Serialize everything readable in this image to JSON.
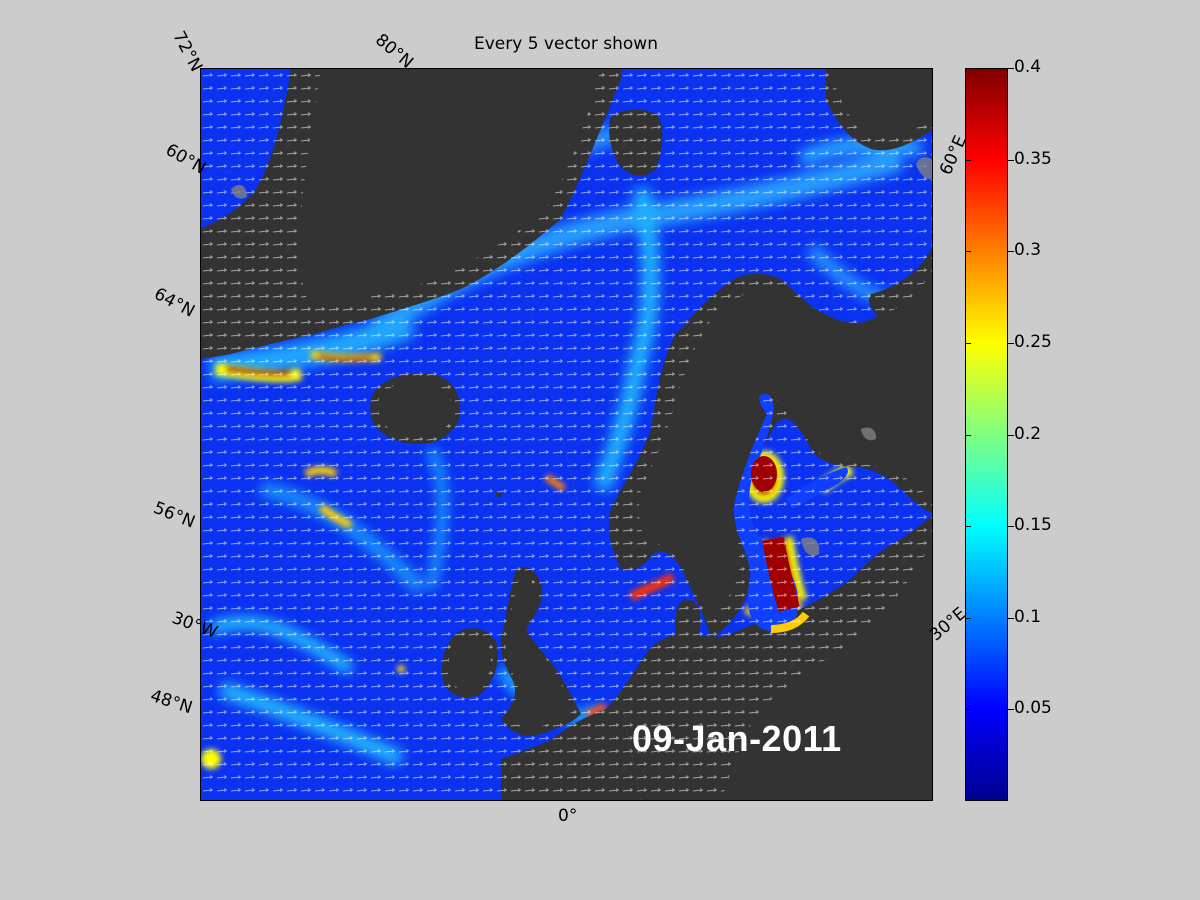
{
  "figure": {
    "title": "Every 5 vector shown",
    "date": "09-Jan-2011"
  },
  "map": {
    "region": "North Atlantic / Nordic Seas / Baltic",
    "land_color": "#333333",
    "vector_color": "#ffffff",
    "grid_labels": [
      "72°N",
      "80°N",
      "60°N",
      "64°N",
      "56°N",
      "48°N",
      "30°W",
      "0°",
      "30°E",
      "60°E"
    ]
  },
  "colorbar": {
    "min": 0,
    "max": 0.4,
    "colormap": "jet",
    "tick_labels": [
      "0.4",
      "0.35",
      "0.3",
      "0.25",
      "0.2",
      "0.15",
      "0.1",
      "0.05"
    ]
  }
}
